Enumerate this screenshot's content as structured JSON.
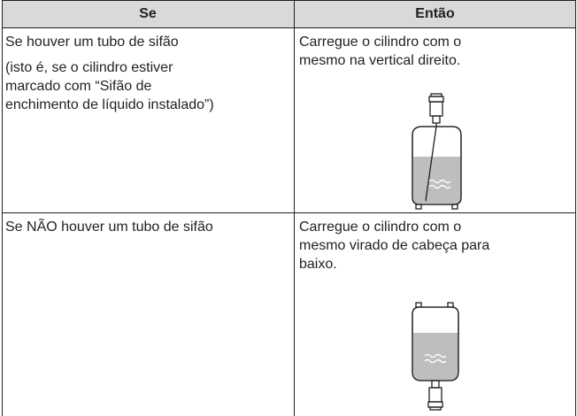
{
  "table": {
    "header": [
      "Se",
      "Então"
    ],
    "rows": [
      [
        {
          "lines": [
            "Se houver um tubo de sifão"
          ],
          "note": [
            "(isto é, se o cilindro estiver",
            "marcado com “Sifão de",
            "enchimento de líquido instalado”)"
          ]
        },
        {
          "lines": [
            "Carregue o cilindro com o",
            "mesmo na vertical direito."
          ]
        }
      ],
      [
        {
          "lines": [
            "Se NÃO houver um tubo de sifão"
          ]
        },
        {
          "lines": [
            "Carregue o cilindro com o",
            "mesmo virado de cabeça para",
            "baixo."
          ]
        }
      ]
    ]
  }
}
